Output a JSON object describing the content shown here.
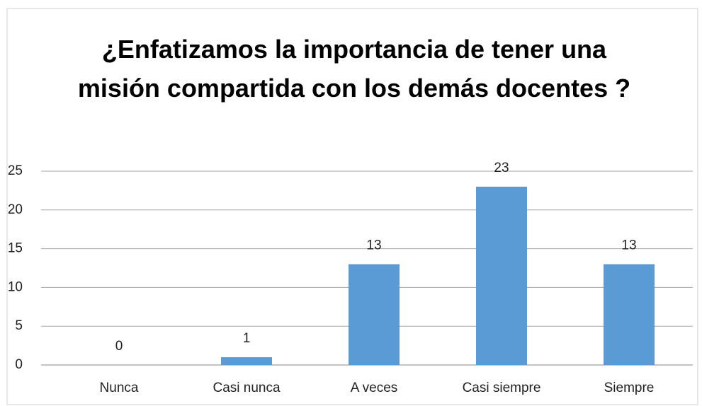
{
  "chart_data": {
    "type": "bar",
    "title": "¿Enfatizamos la importancia de tener una misión compartida con los demás docentes ?",
    "categories": [
      "Nunca",
      "Casi nunca",
      "A veces",
      "Casi siempre",
      "Siempre"
    ],
    "values": [
      0,
      1,
      13,
      23,
      13
    ],
    "color": "#5b9bd5",
    "ylim": [
      0,
      25
    ],
    "yticks": [
      0,
      5,
      10,
      15,
      20,
      25
    ],
    "grid": true
  }
}
